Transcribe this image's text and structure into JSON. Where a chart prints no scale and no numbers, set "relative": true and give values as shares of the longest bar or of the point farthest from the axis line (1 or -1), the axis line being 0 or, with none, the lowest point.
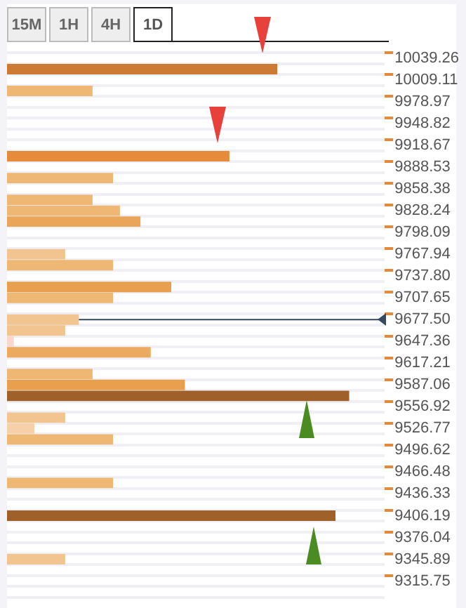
{
  "chart_data": {
    "type": "bar",
    "orientation": "horizontal",
    "relative": true,
    "grid": "y",
    "annotations": [
      "15M",
      "1H",
      "4H",
      "1D"
    ],
    "categories": [
      "10039.26",
      null,
      "10009.11",
      null,
      "9978.97",
      null,
      "9948.82",
      null,
      "9918.67",
      null,
      "9888.53",
      null,
      "9858.38",
      null,
      "9828.24",
      null,
      "9798.09",
      null,
      "9767.94",
      null,
      "9737.80",
      null,
      "9707.65",
      null,
      "9677.50",
      null,
      "9647.36",
      null,
      "9617.21",
      null,
      "9587.06",
      null,
      "9556.92",
      null,
      "9526.77",
      null,
      "9496.62",
      null,
      "9466.48",
      null,
      "9436.33",
      null,
      "9406.19",
      null,
      "9376.04",
      null,
      "9345.89",
      null,
      "9315.75",
      null
    ],
    "values": [
      null,
      0.79,
      null,
      0.25,
      null,
      null,
      null,
      null,
      null,
      0.65,
      null,
      0.31,
      null,
      0.25,
      0.33,
      0.39,
      null,
      null,
      0.17,
      0.31,
      null,
      0.48,
      0.31,
      null,
      0.21,
      0.17,
      0.02,
      0.42,
      null,
      0.25,
      0.52,
      1,
      null,
      0.17,
      0.08,
      0.31,
      null,
      null,
      null,
      0.31,
      null,
      null,
      0.96,
      null,
      null,
      null,
      0.17,
      null,
      null,
      null
    ],
    "colors": [
      null,
      "#cd7a35",
      null,
      "#eeb874",
      null,
      null,
      null,
      null,
      null,
      "#e68a3c",
      null,
      "#eeb874",
      null,
      "#eeb874",
      "#eeb874",
      "#eaa658",
      null,
      null,
      "#f2c490",
      "#eeb874",
      null,
      "#e9a04e",
      "#eeb874",
      null,
      "#f2c490",
      "#f2c490",
      "#f8d8cc",
      "#ebaa60",
      null,
      "#eeb874",
      "#e9a04e",
      "#a0602a",
      null,
      "#f2c490",
      "#f5d0a8",
      "#eeb874",
      null,
      null,
      null,
      "#eeb874",
      null,
      null,
      "#a0602a",
      null,
      null,
      null,
      "#f2c490",
      null,
      null,
      null
    ],
    "ref_lines": [
      {
        "axis": "y",
        "value": "9677.50",
        "color": "#34495e"
      }
    ]
  }
}
